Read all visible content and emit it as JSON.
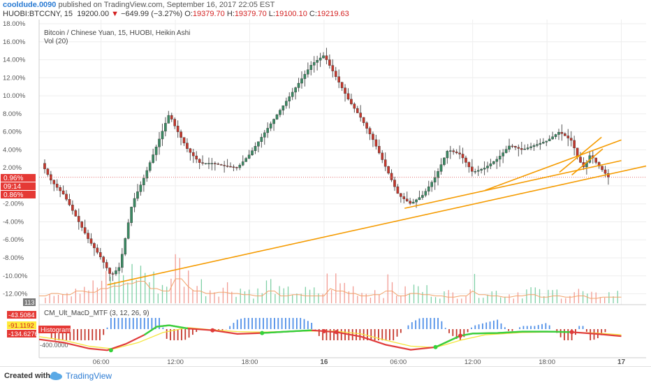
{
  "header": {
    "author": "cooldude.0090",
    "published_text": "published on TradingView.com, September 16, 2017 22:05 EST",
    "symbol": "HUOBI:BTCCNY, 15",
    "last": "19200.00",
    "arrow": "▼",
    "change": "−649.99 (−3.27%)",
    "o_label": "O:",
    "o": "19379.70",
    "h_label": "H:",
    "h": "19379.70",
    "l_label": "L:",
    "l": "19100.10",
    "c_label": "C:",
    "c": "19219.63"
  },
  "legend": {
    "main": "Bitcoin / Chinese Yuan, 15, HUOBI, Heikin Ashi",
    "vol": "Vol (20)",
    "macd": "CM_Ult_MacD_MTF (3, 12, 26, 9)"
  },
  "price_labels": {
    "last_pct": "0.96%",
    "countdown": "09:14",
    "prev_pct": "0.86%",
    "vol_value": "113"
  },
  "macd_labels": {
    "v1": "-43.5084",
    "v2": "-91.1192",
    "hist_label": "Histogram",
    "v3": "-134.6276"
  },
  "footer": {
    "created": "Created with",
    "brand": "TradingView"
  },
  "colors": {
    "up": "#3a8a63",
    "down": "#c5372c",
    "trend": "#f59b00",
    "axis_text": "#555555",
    "grid": "#eeeeee"
  },
  "chart_data": [
    {
      "type": "candlestick",
      "style": "Heikin Ashi",
      "title": "Bitcoin / Chinese Yuan, 15, HUOBI, Heikin Ashi",
      "y_unit": "percent change",
      "ylim": [
        -12.5,
        18.0
      ],
      "y_ticks": [
        "18.00%",
        "16.00%",
        "14.00%",
        "12.00%",
        "10.00%",
        "8.00%",
        "6.00%",
        "4.00%",
        "2.00%",
        "0.00%",
        "-2.00%",
        "-4.00%",
        "-6.00%",
        "-8.00%",
        "-10.00%",
        "-12.00%"
      ],
      "y_tick_values": [
        18,
        16,
        14,
        12,
        10,
        8,
        6,
        4,
        2,
        0,
        -2,
        -4,
        -6,
        -8,
        -10,
        -12
      ],
      "x_ticks": [
        "06:00",
        "12:00",
        "18:00",
        "16",
        "06:00",
        "12:00",
        "18:00",
        "17"
      ],
      "x_tick_hours": [
        6,
        12,
        18,
        24,
        30,
        36,
        42,
        48
      ],
      "x_range_hours": [
        1,
        50
      ],
      "close_path": [
        [
          1.2,
          2.5
        ],
        [
          2,
          0.5
        ],
        [
          3,
          -1
        ],
        [
          4,
          -3.5
        ],
        [
          5,
          -6
        ],
        [
          6,
          -8
        ],
        [
          6.8,
          -10
        ],
        [
          7.5,
          -9
        ],
        [
          8.5,
          -2
        ],
        [
          9.5,
          1
        ],
        [
          10.5,
          4.5
        ],
        [
          11.5,
          8
        ],
        [
          12,
          6.5
        ],
        [
          13,
          4
        ],
        [
          14,
          2.5
        ],
        [
          15,
          2.5
        ],
        [
          16,
          2.2
        ],
        [
          17,
          2
        ],
        [
          18,
          3.5
        ],
        [
          19,
          5.5
        ],
        [
          20,
          7.5
        ],
        [
          21,
          9.5
        ],
        [
          22,
          11.5
        ],
        [
          23,
          13.5
        ],
        [
          24,
          14.5
        ],
        [
          25,
          12
        ],
        [
          26,
          9.5
        ],
        [
          27,
          7.5
        ],
        [
          28,
          5
        ],
        [
          29,
          2
        ],
        [
          30,
          -1
        ],
        [
          31,
          -2
        ],
        [
          32,
          -1
        ],
        [
          33,
          1
        ],
        [
          34,
          4
        ],
        [
          35,
          3.5
        ],
        [
          36,
          1.5
        ],
        [
          37,
          2
        ],
        [
          38,
          3
        ],
        [
          39,
          4.5
        ],
        [
          40,
          4
        ],
        [
          41,
          4.5
        ],
        [
          42,
          5
        ],
        [
          43,
          6
        ],
        [
          44,
          5
        ],
        [
          44.5,
          3
        ],
        [
          45,
          2
        ],
        [
          45.5,
          3.5
        ],
        [
          46,
          2.5
        ],
        [
          47,
          0.9
        ]
      ],
      "annotations": {
        "last_pct": "0.96%",
        "countdown": "09:14",
        "prev_pct": "0.86%"
      },
      "trendlines": [
        {
          "from": [
            6.5,
            -11
          ],
          "to": [
            50,
            2.2
          ]
        },
        {
          "from": [
            30.5,
            -2.5
          ],
          "to": [
            48,
            2.8
          ]
        },
        {
          "from": [
            37,
            -0.5
          ],
          "to": [
            48,
            5.1
          ]
        },
        {
          "from": [
            43,
            1.5
          ],
          "to": [
            46.4,
            5.4
          ]
        },
        {
          "from": [
            44,
            1.2
          ],
          "to": [
            46.5,
            4.1
          ]
        }
      ]
    },
    {
      "type": "bar",
      "title": "Vol (20)",
      "last_value": "113",
      "volume_heights_relative": [
        0.3,
        0.4,
        0.35,
        0.5,
        0.45,
        0.6,
        0.7,
        0.8,
        0.9,
        0.6,
        0.5,
        1.0,
        0.7,
        0.5,
        0.4,
        0.45,
        0.4,
        0.35,
        0.3,
        0.5,
        0.3,
        0.35,
        0.3,
        0.3,
        0.6,
        0.5,
        0.4,
        0.3,
        0.35,
        0.5,
        0.3,
        0.4,
        0.35,
        0.3,
        0.25,
        0.3,
        0.5,
        0.35,
        0.3,
        0.25,
        0.3,
        0.35,
        0.25,
        0.3,
        0.25,
        0.3,
        0.2,
        0.25,
        0.25
      ]
    },
    {
      "type": "line",
      "title": "CM_Ult_MacD_MTF (3, 12, 26, 9)",
      "labels": {
        "v1": "-43.5084",
        "v2": "-91.1192",
        "histogram": "Histogram",
        "v3": "-134.6276"
      },
      "y_ticks": [
        "-400.0000"
      ],
      "series": [
        {
          "values": [
            [
              1,
              -180
            ],
            [
              3,
              -250
            ],
            [
              5,
              -380
            ],
            [
              6.5,
              -420
            ],
            [
              8,
              -280
            ],
            [
              9.5,
              -80
            ],
            [
              10.5,
              100
            ],
            [
              11.5,
              130
            ],
            [
              13,
              60
            ],
            [
              15,
              20
            ],
            [
              17,
              -60
            ],
            [
              19,
              -40
            ],
            [
              21,
              -10
            ],
            [
              23,
              20
            ],
            [
              25,
              -20
            ],
            [
              27,
              -120
            ],
            [
              29,
              -300
            ],
            [
              31,
              -410
            ],
            [
              33,
              -350
            ],
            [
              35,
              -100
            ],
            [
              36,
              -50
            ],
            [
              38,
              -40
            ],
            [
              40,
              -10
            ],
            [
              42,
              -10
            ],
            [
              44,
              -20
            ],
            [
              46,
              -60
            ],
            [
              48,
              -110
            ]
          ]
        },
        {
          "values": [
            [
              1,
              -120
            ],
            [
              3,
              -200
            ],
            [
              5,
              -330
            ],
            [
              7,
              -390
            ],
            [
              9,
              -250
            ],
            [
              11,
              -30
            ],
            [
              13,
              80
            ],
            [
              15,
              30
            ],
            [
              17,
              -10
            ],
            [
              19,
              -20
            ],
            [
              21,
              -5
            ],
            [
              23,
              5
            ],
            [
              25,
              0
            ],
            [
              27,
              -60
            ],
            [
              29,
              -200
            ],
            [
              31,
              -330
            ],
            [
              33,
              -360
            ],
            [
              35,
              -200
            ],
            [
              37,
              -80
            ],
            [
              40,
              -30
            ],
            [
              43,
              -15
            ],
            [
              46,
              -40
            ],
            [
              48,
              -80
            ]
          ]
        }
      ]
    }
  ]
}
